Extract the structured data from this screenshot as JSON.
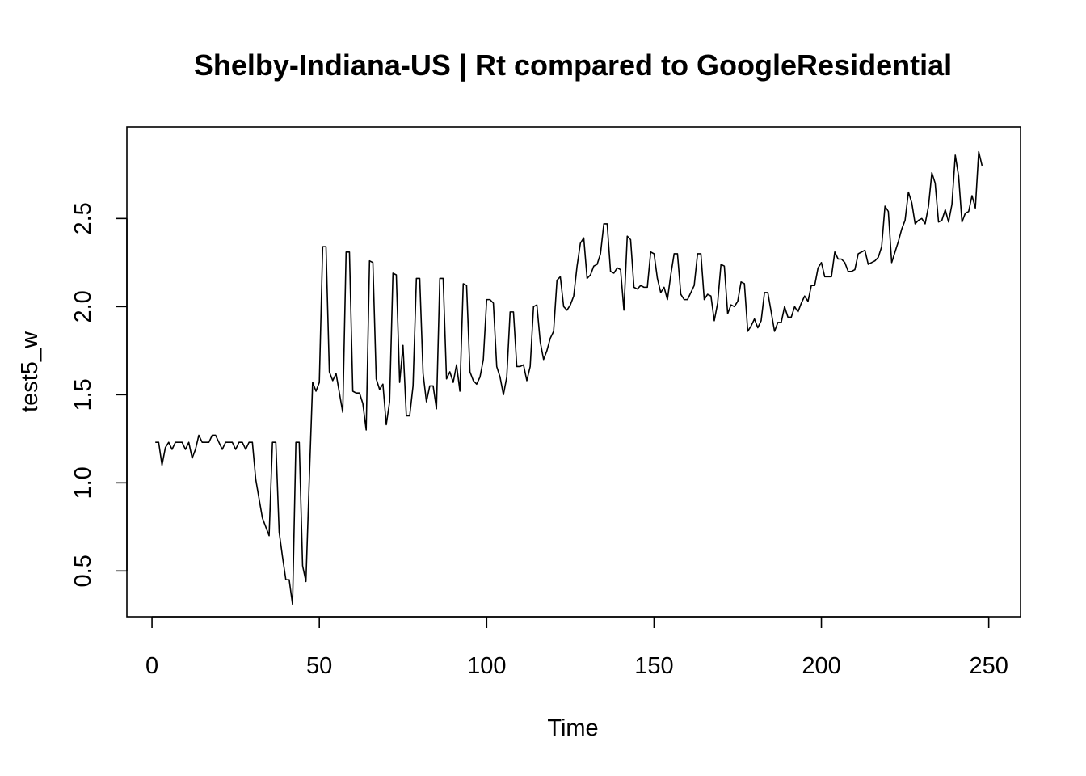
{
  "chart_data": {
    "type": "line",
    "title": "Shelby-Indiana-US | Rt compared to GoogleResidential",
    "xlabel": "Time",
    "ylabel": "test5_w",
    "xlim": [
      -7.5,
      259.5
    ],
    "ylim": [
      0.24,
      3.02
    ],
    "x_ticks": [
      0,
      50,
      100,
      150,
      200,
      250
    ],
    "y_ticks": [
      0.5,
      1.0,
      1.5,
      2.0,
      2.5
    ],
    "x_tick_labels": [
      "0",
      "50",
      "100",
      "150",
      "200",
      "250"
    ],
    "y_tick_labels": [
      "0.5",
      "1.0",
      "1.5",
      "2.0",
      "2.5"
    ],
    "grid": false,
    "legend": "none",
    "series": [
      {
        "x_start": 1,
        "line_color": "#000000",
        "values": [
          1.23,
          1.23,
          1.1,
          1.2,
          1.23,
          1.19,
          1.23,
          1.23,
          1.23,
          1.19,
          1.23,
          1.14,
          1.19,
          1.27,
          1.23,
          1.23,
          1.23,
          1.27,
          1.27,
          1.23,
          1.19,
          1.23,
          1.23,
          1.23,
          1.19,
          1.23,
          1.23,
          1.19,
          1.23,
          1.23,
          1.02,
          0.91,
          0.8,
          0.75,
          0.7,
          1.23,
          1.23,
          0.72,
          0.58,
          0.45,
          0.45,
          0.31,
          1.23,
          1.23,
          0.53,
          0.44,
          1.02,
          1.57,
          1.52,
          1.57,
          2.34,
          2.34,
          1.63,
          1.58,
          1.62,
          1.51,
          1.4,
          2.31,
          2.31,
          1.52,
          1.51,
          1.51,
          1.45,
          1.3,
          2.26,
          2.25,
          1.59,
          1.53,
          1.56,
          1.33,
          1.46,
          2.19,
          2.18,
          1.57,
          1.78,
          1.38,
          1.38,
          1.55,
          2.16,
          2.16,
          1.62,
          1.46,
          1.55,
          1.55,
          1.42,
          2.16,
          2.16,
          1.59,
          1.63,
          1.57,
          1.67,
          1.52,
          2.13,
          2.12,
          1.63,
          1.58,
          1.56,
          1.6,
          1.7,
          2.04,
          2.04,
          2.02,
          1.66,
          1.6,
          1.5,
          1.6,
          1.97,
          1.97,
          1.66,
          1.66,
          1.67,
          1.58,
          1.66,
          2.0,
          2.01,
          1.8,
          1.7,
          1.75,
          1.82,
          1.86,
          2.15,
          2.17,
          2.0,
          1.98,
          2.01,
          2.06,
          2.23,
          2.36,
          2.39,
          2.16,
          2.18,
          2.23,
          2.24,
          2.3,
          2.47,
          2.47,
          2.2,
          2.19,
          2.22,
          2.21,
          1.98,
          2.4,
          2.38,
          2.11,
          2.1,
          2.12,
          2.11,
          2.11,
          2.31,
          2.3,
          2.16,
          2.08,
          2.11,
          2.04,
          2.18,
          2.3,
          2.3,
          2.07,
          2.04,
          2.04,
          2.08,
          2.12,
          2.3,
          2.3,
          2.04,
          2.07,
          2.06,
          1.92,
          2.02,
          2.24,
          2.23,
          1.96,
          2.01,
          2.0,
          2.03,
          2.14,
          2.13,
          1.86,
          1.89,
          1.93,
          1.88,
          1.92,
          2.08,
          2.08,
          1.97,
          1.86,
          1.91,
          1.91,
          2.0,
          1.94,
          1.94,
          2.0,
          1.97,
          2.02,
          2.06,
          2.03,
          2.12,
          2.12,
          2.22,
          2.25,
          2.17,
          2.17,
          2.17,
          2.31,
          2.27,
          2.27,
          2.25,
          2.2,
          2.2,
          2.21,
          2.3,
          2.31,
          2.32,
          2.24,
          2.25,
          2.26,
          2.28,
          2.34,
          2.57,
          2.54,
          2.25,
          2.31,
          2.37,
          2.44,
          2.49,
          2.65,
          2.59,
          2.47,
          2.49,
          2.5,
          2.47,
          2.57,
          2.76,
          2.7,
          2.48,
          2.49,
          2.55,
          2.48,
          2.58,
          2.86,
          2.74,
          2.48,
          2.53,
          2.54,
          2.63,
          2.56,
          2.88,
          2.8
        ]
      }
    ]
  }
}
